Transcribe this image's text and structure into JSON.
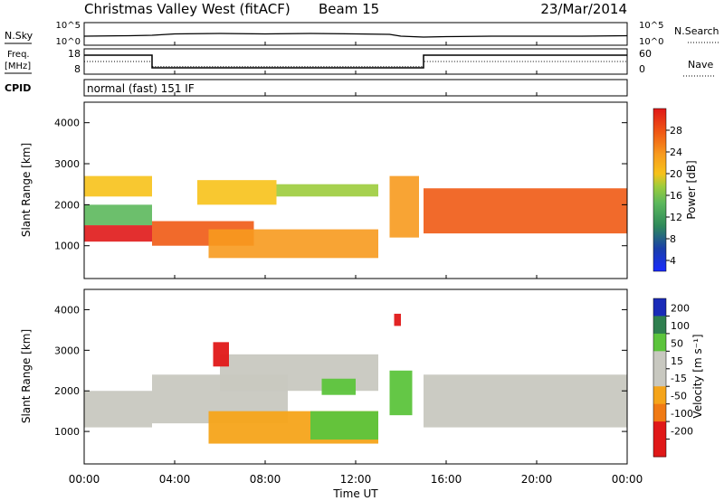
{
  "header": {
    "title": "Christmas Valley West (fitACF)",
    "beam": "Beam 15",
    "date": "23/Mar/2014"
  },
  "chart_data": [
    {
      "type": "line",
      "name": "noise-panel",
      "ylabel": "N.Sky",
      "right_label": "N.Search",
      "yticks": [
        "10^5",
        "10^0"
      ],
      "right_yticks": [
        "10^5",
        "10^0"
      ],
      "x": [
        "00:00",
        "02:00",
        "03:00",
        "04:00",
        "06:00",
        "08:00",
        "10:00",
        "12:00",
        "13:30",
        "14:00",
        "15:00",
        "16:00",
        "18:00",
        "20:00",
        "22:00",
        "24:00"
      ],
      "series": [
        {
          "values": [
            2.0,
            2.1,
            2.2,
            2.5,
            2.6,
            2.5,
            2.6,
            2.5,
            2.4,
            2.0,
            1.8,
            1.9,
            2.0,
            2.0,
            2.0,
            2.1
          ]
        }
      ]
    },
    {
      "type": "line",
      "name": "freq-nave-panel",
      "ylabel": "Freq.",
      "yunit": "[MHz]",
      "right_label": "Nave",
      "yticks": [
        "18",
        "8"
      ],
      "right_yticks": [
        "60",
        "0"
      ],
      "series": [
        {
          "values": [
            {
              "x": 0,
              "y": 15.5
            },
            {
              "x": 3.0,
              "y": 15.5
            },
            {
              "x": 3.0,
              "y": 10.5
            },
            {
              "x": 15.0,
              "y": 10.5
            },
            {
              "x": 15.0,
              "y": 15.5
            },
            {
              "x": 24.0,
              "y": 15.5
            }
          ]
        },
        {
          "values": [
            {
              "x": 0,
              "y": 13.0
            },
            {
              "x": 3.0,
              "y": 13.0
            },
            {
              "x": 3.0,
              "y": 11.0
            },
            {
              "x": 15.0,
              "y": 11.0
            },
            {
              "x": 15.0,
              "y": 13.0
            },
            {
              "x": 24.0,
              "y": 13.0
            }
          ]
        }
      ]
    },
    {
      "type": "heatmap",
      "name": "power-panel",
      "ylabel": "Slant Range [km]",
      "yticks": [
        "4000",
        "3000",
        "2000",
        "1000"
      ],
      "ylim": [
        200,
        4500
      ],
      "colorbar_label": "Power [dB]",
      "colorbar_ticks": [
        "28",
        "24",
        "20",
        "16",
        "12",
        "8",
        "4"
      ],
      "bands": [
        {
          "x": [
            0.0,
            3.0
          ],
          "y": [
            1100,
            1500
          ],
          "dB": 30
        },
        {
          "x": [
            0.0,
            3.0
          ],
          "y": [
            1500,
            2000
          ],
          "dB": 14
        },
        {
          "x": [
            0.0,
            3.0
          ],
          "y": [
            2200,
            2700
          ],
          "dB": 20
        },
        {
          "x": [
            3.0,
            7.5
          ],
          "y": [
            1000,
            1600
          ],
          "dB": 28
        },
        {
          "x": [
            5.0,
            8.5
          ],
          "y": [
            2000,
            2600
          ],
          "dB": 18
        },
        {
          "x": [
            8.5,
            13.0
          ],
          "y": [
            2200,
            2500
          ],
          "dB": 16
        },
        {
          "x": [
            5.5,
            13.0
          ],
          "y": [
            700,
            1400
          ],
          "dB": 24
        },
        {
          "x": [
            13.5,
            14.8
          ],
          "y": [
            1200,
            2700
          ],
          "dB": 24
        },
        {
          "x": [
            15.0,
            24.0
          ],
          "y": [
            1300,
            2400
          ],
          "dB": 28
        }
      ]
    },
    {
      "type": "heatmap",
      "name": "velocity-panel",
      "ylabel": "Slant Range [km]",
      "xlabel": "Time UT",
      "yticks": [
        "4000",
        "3000",
        "2000",
        "1000"
      ],
      "xticks": [
        "00:00",
        "04:00",
        "08:00",
        "12:00",
        "16:00",
        "20:00",
        "00:00"
      ],
      "ylim": [
        200,
        4500
      ],
      "colorbar_label": "Velocity [m s⁻¹]",
      "colorbar_ticks": [
        "200",
        "100",
        "50",
        "15",
        "-15",
        "-50",
        "-100",
        "-200"
      ],
      "bands": [
        {
          "x": [
            0.0,
            3.0
          ],
          "y": [
            1100,
            2000
          ],
          "v": 0
        },
        {
          "x": [
            3.0,
            9.0
          ],
          "y": [
            1200,
            2400
          ],
          "v": 0
        },
        {
          "x": [
            6.0,
            13.0
          ],
          "y": [
            2000,
            2900
          ],
          "v": 0
        },
        {
          "x": [
            5.5,
            13.0
          ],
          "y": [
            700,
            1500
          ],
          "v": -50
        },
        {
          "x": [
            10.0,
            13.0
          ],
          "y": [
            800,
            1500
          ],
          "v": 50
        },
        {
          "x": [
            10.5,
            12.0
          ],
          "y": [
            1900,
            2300
          ],
          "v": 50
        },
        {
          "x": [
            13.5,
            14.5
          ],
          "y": [
            1400,
            2500
          ],
          "v": 60
        },
        {
          "x": [
            15.0,
            24.0
          ],
          "y": [
            1100,
            2400
          ],
          "v": 0
        },
        {
          "x": [
            5.7,
            6.4
          ],
          "y": [
            2600,
            3200
          ],
          "v": -200
        },
        {
          "x": [
            13.7,
            14.0
          ],
          "y": [
            3600,
            3900
          ],
          "v": -200
        }
      ]
    }
  ],
  "cpid": {
    "label": "CPID",
    "value": "normal (fast) 151 IF"
  }
}
